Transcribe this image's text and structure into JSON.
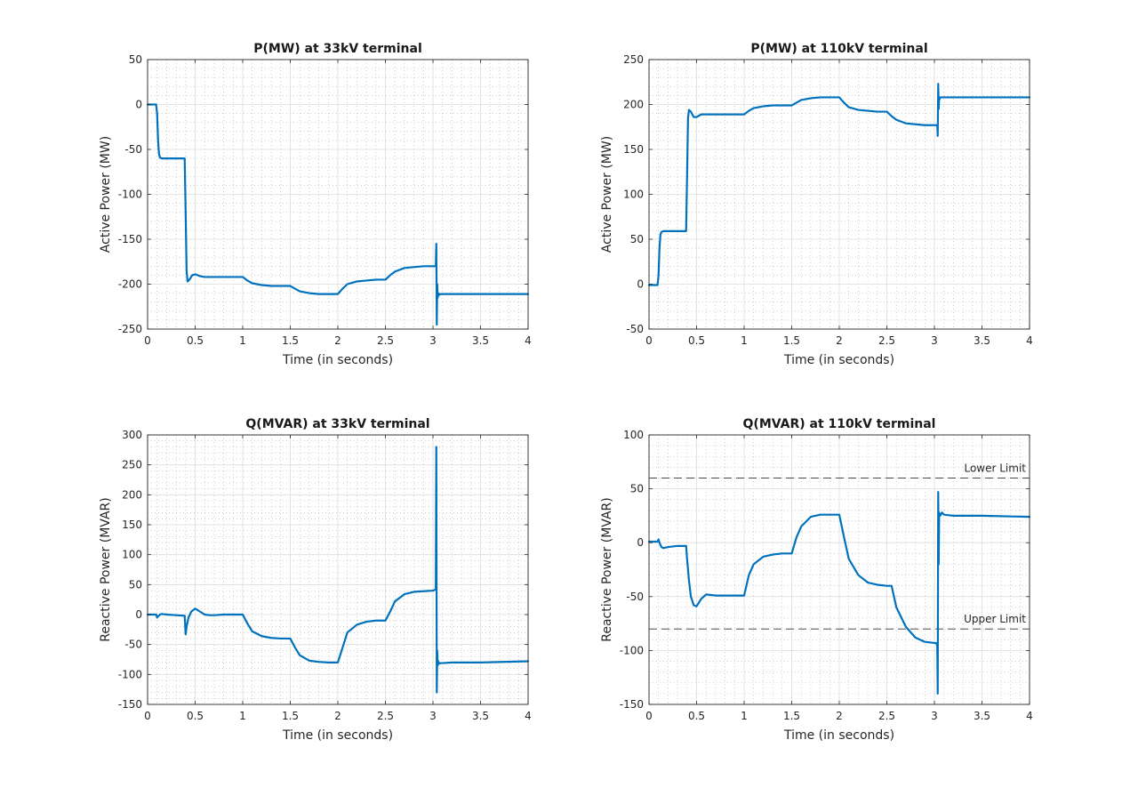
{
  "figure": {
    "background": "#ffffff",
    "series_color": "#0072bd"
  },
  "chart_data": [
    {
      "type": "line",
      "title": "P(MW) at 33kV terminal",
      "xlabel": "Time (in seconds)",
      "ylabel": "Active Power (MW)",
      "xlim": [
        0,
        4
      ],
      "ylim": [
        -250,
        50
      ],
      "xticks": [
        0,
        0.5,
        1,
        1.5,
        2,
        2.5,
        3,
        3.5,
        4
      ],
      "xtick_labels": [
        "0",
        "0.5",
        "1",
        "1.5",
        "2",
        "2.5",
        "3",
        "3.5",
        "4"
      ],
      "yticks": [
        -250,
        -200,
        -150,
        -100,
        -50,
        0,
        50
      ],
      "ytick_labels": [
        "-250",
        "-200",
        "-150",
        "-100",
        "-50",
        "0",
        "50"
      ],
      "grid": true,
      "minor_grid": true,
      "series": [
        {
          "color": "#0072bd",
          "x": [
            0,
            0.09,
            0.1,
            0.11,
            0.12,
            0.13,
            0.15,
            0.2,
            0.3,
            0.39,
            0.4,
            0.41,
            0.42,
            0.44,
            0.47,
            0.5,
            0.55,
            0.6,
            0.7,
            0.8,
            0.9,
            1.0,
            1.05,
            1.1,
            1.2,
            1.3,
            1.4,
            1.5,
            1.55,
            1.6,
            1.7,
            1.8,
            1.9,
            2.0,
            2.05,
            2.1,
            2.2,
            2.3,
            2.4,
            2.5,
            2.55,
            2.6,
            2.7,
            2.8,
            2.9,
            3.0,
            3.03,
            3.035,
            3.04,
            3.045,
            3.05,
            3.055,
            3.06,
            3.08,
            3.1,
            3.2,
            3.5,
            4.0
          ],
          "y": [
            0,
            0,
            -10,
            -40,
            -55,
            -59,
            -60,
            -60,
            -60,
            -60,
            -120,
            -185,
            -197,
            -195,
            -190,
            -189,
            -191,
            -192,
            -192,
            -192,
            -192,
            -192,
            -196,
            -199,
            -201,
            -202,
            -202,
            -202,
            -205,
            -208,
            -210,
            -211,
            -211,
            -211,
            -205,
            -200,
            -197,
            -196,
            -195,
            -195,
            -190,
            -186,
            -182,
            -181,
            -180,
            -180,
            -180,
            -155,
            -245,
            -200,
            -215,
            -210,
            -212,
            -211,
            -211,
            -211,
            -211,
            -211
          ]
        }
      ]
    },
    {
      "type": "line",
      "title": "P(MW) at 110kV terminal",
      "xlabel": "Time (in seconds)",
      "ylabel": "Active Power (MW)",
      "xlim": [
        0,
        4
      ],
      "ylim": [
        -50,
        250
      ],
      "xticks": [
        0,
        0.5,
        1,
        1.5,
        2,
        2.5,
        3,
        3.5,
        4
      ],
      "xtick_labels": [
        "0",
        "0.5",
        "1",
        "1.5",
        "2",
        "2.5",
        "3",
        "3.5",
        "4"
      ],
      "yticks": [
        -50,
        0,
        50,
        100,
        150,
        200,
        250
      ],
      "ytick_labels": [
        "-50",
        "0",
        "50",
        "100",
        "150",
        "200",
        "250"
      ],
      "grid": true,
      "minor_grid": true,
      "series": [
        {
          "color": "#0072bd",
          "x": [
            0,
            0.09,
            0.1,
            0.11,
            0.12,
            0.13,
            0.15,
            0.2,
            0.3,
            0.39,
            0.4,
            0.41,
            0.42,
            0.44,
            0.47,
            0.5,
            0.55,
            0.6,
            0.7,
            0.8,
            0.9,
            1.0,
            1.05,
            1.1,
            1.2,
            1.3,
            1.4,
            1.5,
            1.55,
            1.6,
            1.7,
            1.8,
            1.9,
            2.0,
            2.05,
            2.1,
            2.2,
            2.3,
            2.4,
            2.5,
            2.55,
            2.6,
            2.7,
            2.8,
            2.9,
            3.0,
            3.03,
            3.035,
            3.04,
            3.045,
            3.05,
            3.055,
            3.06,
            3.08,
            3.1,
            3.2,
            3.5,
            4.0
          ],
          "y": [
            -1,
            -1,
            10,
            40,
            55,
            58,
            59,
            59,
            59,
            59,
            120,
            185,
            194,
            192,
            186,
            186,
            189,
            189,
            189,
            189,
            189,
            189,
            193,
            196,
            198,
            199,
            199,
            199,
            202,
            205,
            207,
            208,
            208,
            208,
            202,
            197,
            194,
            193,
            192,
            192,
            187,
            183,
            179,
            178,
            177,
            177,
            177,
            165,
            223,
            195,
            208,
            206,
            208,
            208,
            208,
            208,
            208,
            208
          ]
        }
      ]
    },
    {
      "type": "line",
      "title": "Q(MVAR) at 33kV terminal",
      "xlabel": "Time (in seconds)",
      "ylabel": "Reactive Power (MVAR)",
      "xlim": [
        0,
        4
      ],
      "ylim": [
        -150,
        300
      ],
      "xticks": [
        0,
        0.5,
        1,
        1.5,
        2,
        2.5,
        3,
        3.5,
        4
      ],
      "xtick_labels": [
        "0",
        "0.5",
        "1",
        "1.5",
        "2",
        "2.5",
        "3",
        "3.5",
        "4"
      ],
      "yticks": [
        -150,
        -100,
        -50,
        0,
        50,
        100,
        150,
        200,
        250,
        300
      ],
      "ytick_labels": [
        "-150",
        "-100",
        "-50",
        "0",
        "50",
        "100",
        "150",
        "200",
        "250",
        "300"
      ],
      "grid": true,
      "minor_grid": true,
      "series": [
        {
          "color": "#0072bd",
          "x": [
            0,
            0.09,
            0.1,
            0.11,
            0.13,
            0.15,
            0.2,
            0.3,
            0.39,
            0.4,
            0.41,
            0.43,
            0.46,
            0.5,
            0.55,
            0.6,
            0.65,
            0.7,
            0.8,
            0.9,
            1.0,
            1.05,
            1.1,
            1.2,
            1.3,
            1.4,
            1.5,
            1.55,
            1.6,
            1.7,
            1.8,
            1.9,
            2.0,
            2.05,
            2.1,
            2.2,
            2.3,
            2.4,
            2.5,
            2.55,
            2.6,
            2.7,
            2.8,
            2.9,
            3.0,
            3.03,
            3.035,
            3.04,
            3.045,
            3.05,
            3.055,
            3.06,
            3.08,
            3.1,
            3.2,
            3.5,
            4.0
          ],
          "y": [
            0,
            0,
            -5,
            -3,
            0,
            1,
            0,
            -1,
            -2,
            -33,
            -20,
            -5,
            5,
            10,
            5,
            0,
            -1,
            -1,
            0,
            0,
            0,
            -15,
            -28,
            -36,
            -39,
            -40,
            -40,
            -55,
            -68,
            -77,
            -79,
            -80,
            -80,
            -55,
            -30,
            -17,
            -12,
            -10,
            -10,
            5,
            22,
            34,
            38,
            39,
            40,
            42,
            280,
            -130,
            -60,
            -85,
            -78,
            -82,
            -81,
            -81,
            -80,
            -80,
            -78
          ]
        }
      ]
    },
    {
      "type": "line",
      "title": "Q(MVAR) at 110kV terminal",
      "xlabel": "Time (in seconds)",
      "ylabel": "Reactive Power (MVAR)",
      "xlim": [
        0,
        4
      ],
      "ylim": [
        -150,
        100
      ],
      "xticks": [
        0,
        0.5,
        1,
        1.5,
        2,
        2.5,
        3,
        3.5,
        4
      ],
      "xtick_labels": [
        "0",
        "0.5",
        "1",
        "1.5",
        "2",
        "2.5",
        "3",
        "3.5",
        "4"
      ],
      "yticks": [
        -150,
        -100,
        -50,
        0,
        50,
        100
      ],
      "ytick_labels": [
        "-150",
        "-100",
        "-50",
        "0",
        "50",
        "100"
      ],
      "grid": true,
      "minor_grid": true,
      "reference_lines": [
        {
          "y": 60,
          "label": "Lower Limit"
        },
        {
          "y": -80,
          "label": "Upper Limit"
        }
      ],
      "series": [
        {
          "color": "#0072bd",
          "x": [
            0,
            0.09,
            0.1,
            0.11,
            0.13,
            0.15,
            0.2,
            0.3,
            0.39,
            0.4,
            0.42,
            0.44,
            0.47,
            0.5,
            0.55,
            0.6,
            0.7,
            0.8,
            0.9,
            1.0,
            1.05,
            1.1,
            1.2,
            1.3,
            1.4,
            1.5,
            1.55,
            1.6,
            1.7,
            1.8,
            1.9,
            2.0,
            2.05,
            2.1,
            2.2,
            2.3,
            2.4,
            2.5,
            2.55,
            2.6,
            2.7,
            2.8,
            2.9,
            3.0,
            3.02,
            3.03,
            3.035,
            3.04,
            3.045,
            3.05,
            3.06,
            3.08,
            3.1,
            3.2,
            3.5,
            4.0
          ],
          "y": [
            1,
            1,
            3,
            0,
            -4,
            -5,
            -4,
            -3,
            -3,
            -15,
            -35,
            -50,
            -58,
            -59,
            -52,
            -48,
            -49,
            -49,
            -49,
            -49,
            -30,
            -20,
            -13,
            -11,
            -10,
            -10,
            5,
            15,
            24,
            26,
            26,
            26,
            5,
            -15,
            -30,
            -37,
            -39,
            -40,
            -40,
            -60,
            -78,
            -88,
            -92,
            -93,
            -93,
            -96,
            -140,
            47,
            -20,
            28,
            25,
            28,
            26,
            25,
            25,
            24
          ]
        }
      ]
    }
  ]
}
